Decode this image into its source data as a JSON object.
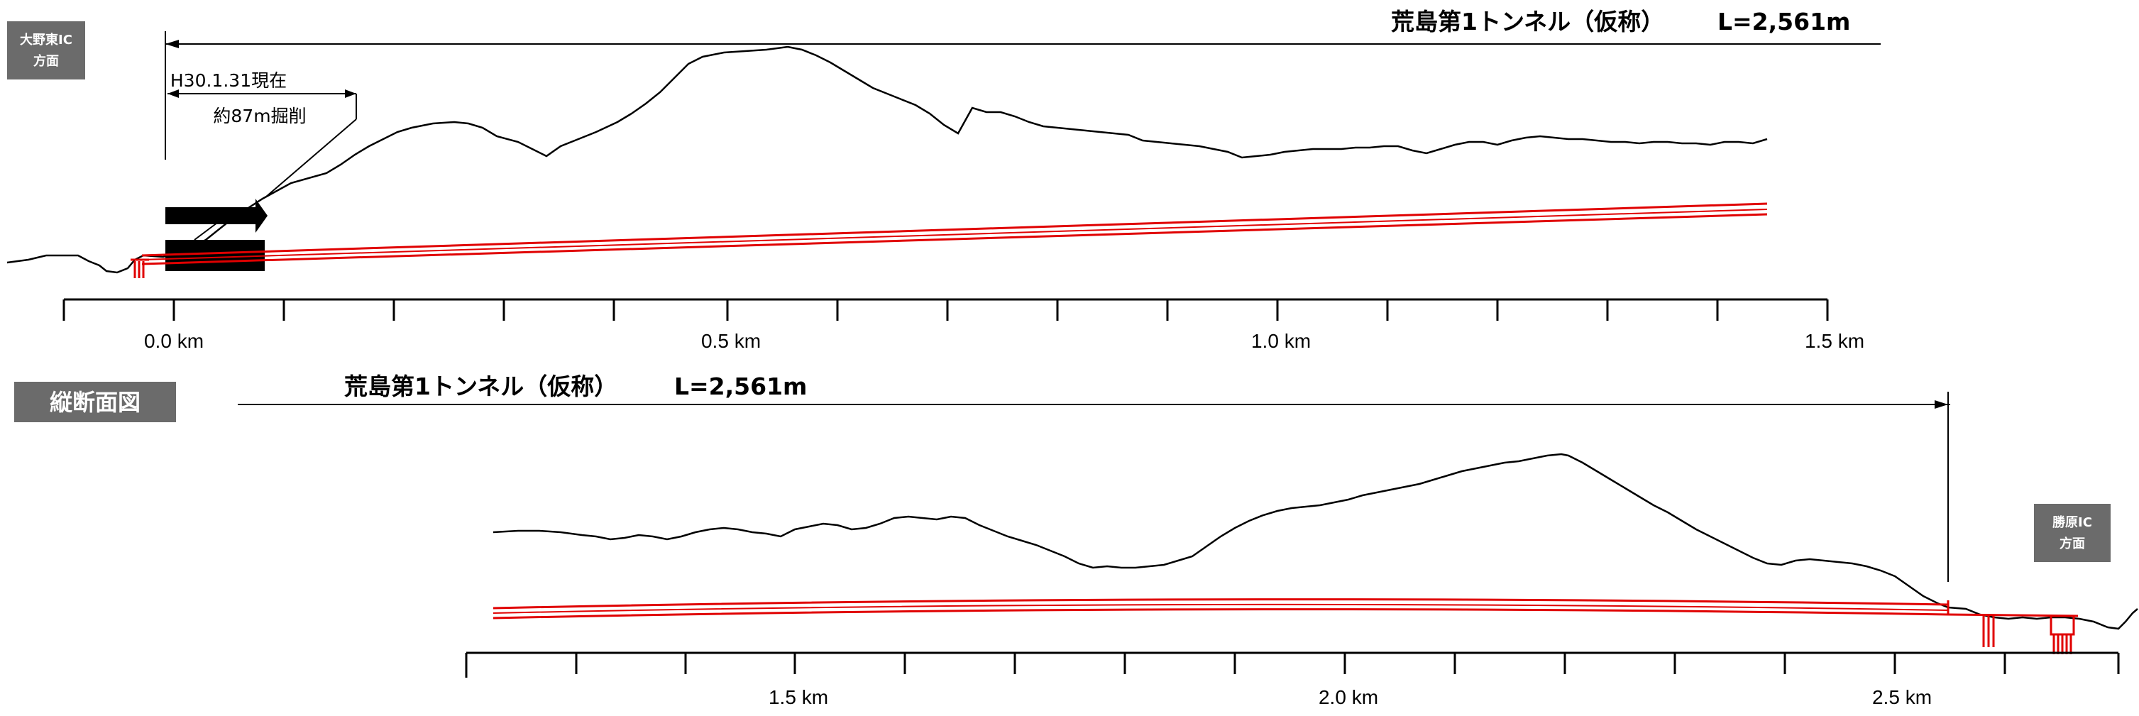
{
  "direction_left": {
    "line1": "大野東IC",
    "line2": "方面"
  },
  "direction_right": {
    "line1": "勝原IC",
    "line2": "方面"
  },
  "section_label": "縦断面図",
  "tunnel_top": {
    "name": "荒島第1トンネル（仮称）",
    "length": "L=2,561m"
  },
  "tunnel_bottom": {
    "name": "荒島第1トンネル（仮称）",
    "length": "L=2,561m"
  },
  "progress": {
    "date": "H30.1.31現在",
    "excavated": "約87m掘削",
    "excavated_m": 87
  },
  "axis_top": {
    "labels": [
      "0.0  km",
      "0.5  km",
      "1.0  km",
      "1.5  km"
    ]
  },
  "axis_bottom": {
    "labels": [
      "1.5  km",
      "2.0  km",
      "2.5  km"
    ]
  },
  "colors": {
    "terrain": "#000000",
    "tunnel": "#e00000",
    "label_box": "#6b6b6b"
  }
}
